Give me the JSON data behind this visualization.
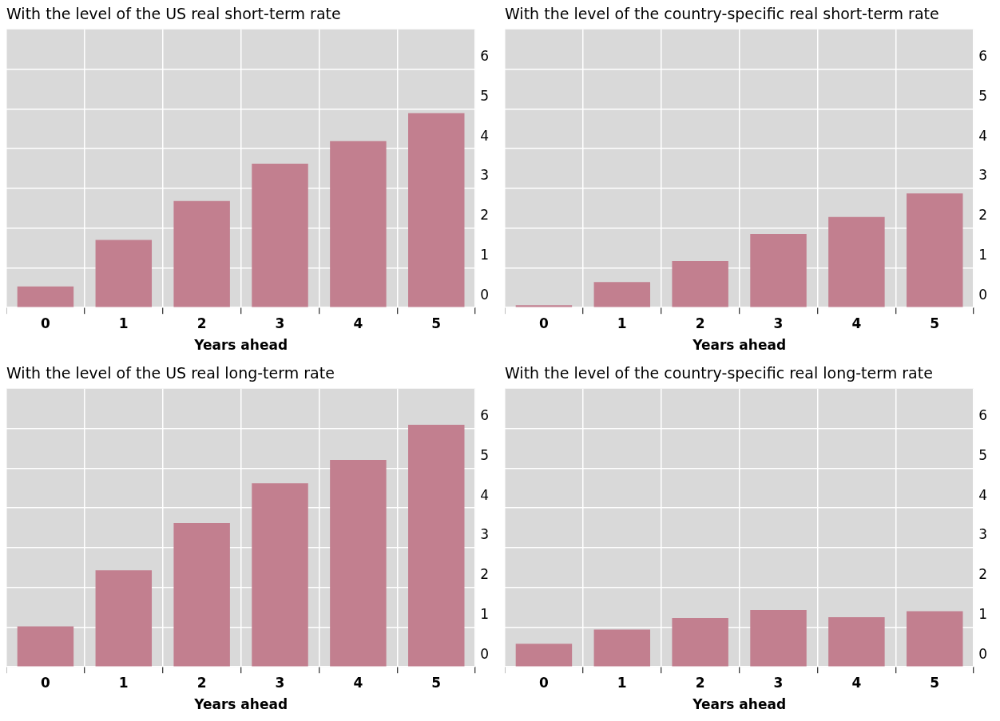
{
  "chart_data": [
    {
      "type": "bar",
      "title": "With the level of the US real short-term rate",
      "xlabel": "Years ahead",
      "categories": [
        "0",
        "1",
        "2",
        "3",
        "4",
        "5"
      ],
      "values": [
        0.53,
        1.7,
        2.68,
        3.62,
        4.19,
        4.89
      ],
      "color": "#c27f8f",
      "ylim": [
        0,
        7
      ],
      "yticks": [
        0,
        1,
        2,
        3,
        4,
        5,
        6
      ],
      "grid": true
    },
    {
      "type": "bar",
      "title": "With the level of the country-specific real short-term rate",
      "xlabel": "Years ahead",
      "categories": [
        "0",
        "1",
        "2",
        "3",
        "4",
        "5"
      ],
      "values": [
        0.06,
        0.64,
        1.17,
        1.85,
        2.28,
        2.87
      ],
      "color": "#c27f8f",
      "ylim": [
        0,
        7
      ],
      "yticks": [
        0,
        1,
        2,
        3,
        4,
        5,
        6
      ],
      "grid": true
    },
    {
      "type": "bar",
      "title": "With the level of the US real long-term rate",
      "xlabel": "Years ahead",
      "categories": [
        "0",
        "1",
        "2",
        "3",
        "4",
        "5"
      ],
      "values": [
        1.02,
        2.43,
        3.62,
        4.62,
        5.21,
        6.09
      ],
      "color": "#c27f8f",
      "ylim": [
        0,
        7
      ],
      "yticks": [
        0,
        1,
        2,
        3,
        4,
        5,
        6
      ],
      "grid": true
    },
    {
      "type": "bar",
      "title": "With the level of the country-specific real long-term rate",
      "xlabel": "Years ahead",
      "categories": [
        "0",
        "1",
        "2",
        "3",
        "4",
        "5"
      ],
      "values": [
        0.58,
        0.94,
        1.23,
        1.43,
        1.25,
        1.4
      ],
      "color": "#c27f8f",
      "ylim": [
        0,
        7
      ],
      "yticks": [
        0,
        1,
        2,
        3,
        4,
        5,
        6
      ],
      "grid": true
    }
  ]
}
